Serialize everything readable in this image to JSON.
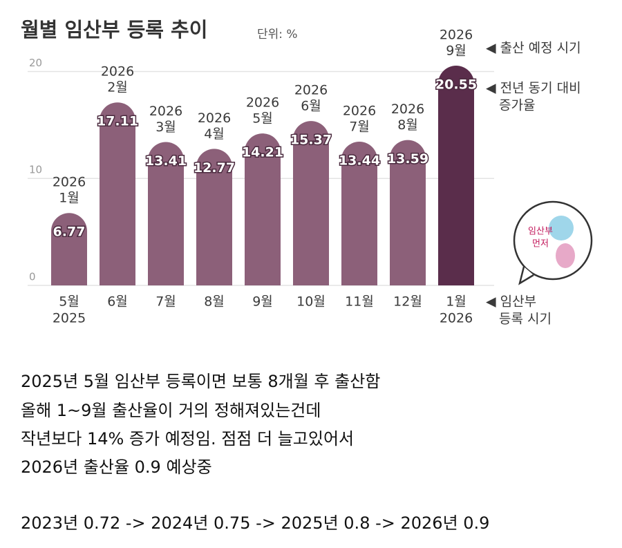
{
  "chart_data": {
    "type": "bar",
    "title": "월별 임산부 등록 추이",
    "subtitle": "단위: %",
    "categories": [
      "5월",
      "6월",
      "7월",
      "8월",
      "9월",
      "10월",
      "11월",
      "12월",
      "1월"
    ],
    "category_years": [
      "2025",
      null,
      null,
      null,
      null,
      null,
      null,
      null,
      "2026"
    ],
    "due_labels": [
      [
        "2026",
        "1월"
      ],
      [
        "2026",
        "2월"
      ],
      [
        "2026",
        "3월"
      ],
      [
        "2026",
        "4월"
      ],
      [
        "2026",
        "5월"
      ],
      [
        "2026",
        "6월"
      ],
      [
        "2026",
        "7월"
      ],
      [
        "2026",
        "8월"
      ],
      [
        "2026",
        "9월"
      ]
    ],
    "values": [
      6.77,
      17.11,
      13.41,
      12.77,
      14.21,
      15.37,
      13.44,
      13.59,
      20.55
    ],
    "colors": [
      "#8c6079",
      "#8c6079",
      "#8c6079",
      "#8c6079",
      "#8c6079",
      "#8c6079",
      "#8c6079",
      "#8c6079",
      "#5a2d4b"
    ],
    "ylim": [
      0,
      21
    ],
    "yticks": [
      0,
      10,
      20
    ],
    "grid": true,
    "annotations": [
      {
        "lines": [
          "◀ 출산 예정 시기"
        ]
      },
      {
        "lines": [
          "◀ 전년 동기 대비",
          "증가율"
        ]
      },
      {
        "lines": [
          "◀ 임산부",
          "등록 시기"
        ]
      }
    ],
    "logo": [
      "임산부",
      "먼저"
    ]
  },
  "post": {
    "lines": [
      "2025년 5월 임산부 등록이면 보통 8개월 후 출산함",
      "올해 1~9월 출산율이 거의 정해져있는건데",
      "작년보다 14% 증가 예정임. 점점 더 늘고있어서",
      "2026년 출산율 0.9 예상중"
    ],
    "trend": "2023년 0.72 -> 2024년 0.75 -> 2025년 0.8 -> 2026년 0.9"
  }
}
